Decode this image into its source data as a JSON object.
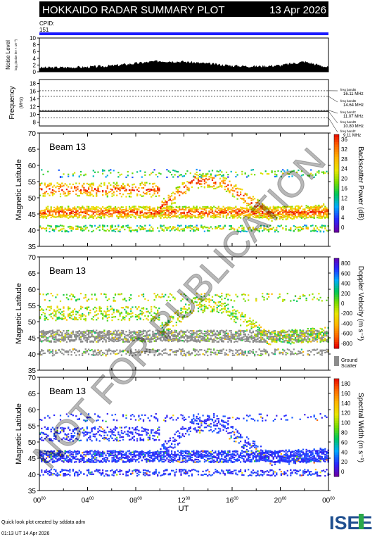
{
  "header": {
    "title": "HOKKAIDO RADAR SUMMARY PLOT",
    "date": "13 Apr 2026",
    "cpid_label": "CPID:",
    "cpid_value": "151",
    "colors": {
      "header_bg": "#000000",
      "cpid_bar": "#1a1aff"
    }
  },
  "noise_panel": {
    "ylabel": "Noise Level",
    "ylabel_sub": "log₁₀(noise lev × 10⁻³)",
    "yticks": [
      "0",
      "2",
      "4",
      "6",
      "8",
      "10"
    ]
  },
  "frequency_panel": {
    "ylabel": "Frequency",
    "unit": "(MHz)",
    "yticks": [
      "8",
      "10",
      "12",
      "14",
      "16",
      "18"
    ],
    "bands": [
      {
        "label": "freq bandB",
        "value": "16.11 MHz"
      },
      {
        "label": "freq bandB",
        "value": "14.64 MHz"
      },
      {
        "label": "freq bandC",
        "value": "11.07 MHz"
      },
      {
        "label": "freq bandD",
        "value": "10.80 MHz"
      },
      {
        "label": "freq bandF",
        "value": "9.11 MHz"
      }
    ]
  },
  "panels": [
    {
      "beam": "Beam 13",
      "ylabel": "Magnetic Latitude",
      "cbar_label": "Backscatter Power (dB)",
      "cbar_ticks": [
        "0",
        "4",
        "8",
        "12",
        "16",
        "20",
        "24",
        "28",
        "32",
        "36"
      ]
    },
    {
      "beam": "Beam 13",
      "ylabel": "Magnetic Latitude",
      "cbar_label": "Doppler Velocity (m s⁻¹)",
      "cbar_ticks": [
        "-800",
        "-600",
        "-400",
        "-200",
        "0",
        "200",
        "400",
        "600",
        "800"
      ],
      "ground_label_1": "Ground",
      "ground_label_2": "Scatter"
    },
    {
      "beam": "Beam 13",
      "ylabel": "Magnetic Latitude",
      "cbar_label": "Spectral Width (m s⁻¹)",
      "cbar_ticks": [
        "0",
        "20",
        "40",
        "60",
        "80",
        "100",
        "120",
        "140",
        "160",
        "180"
      ]
    }
  ],
  "lat_ticks": [
    "35",
    "40",
    "45",
    "50",
    "55",
    "60",
    "65",
    "70"
  ],
  "x_axis": {
    "label": "UT",
    "ticks": [
      "00",
      "04",
      "08",
      "12",
      "16",
      "20",
      "00"
    ],
    "tick_sup": "00"
  },
  "watermark": "NOT FOR PUBLICATION",
  "footer": {
    "line1": "Quick look plot created by sddata adm",
    "line2": "01:13 UT 14 Apr 2026",
    "logo": "ISEE"
  },
  "chart_data": [
    {
      "type": "area",
      "title": "",
      "ylabel": "Noise Level",
      "xlim": [
        0,
        24
      ],
      "ylim": [
        0,
        10
      ],
      "x": [
        0,
        2,
        4,
        6,
        8,
        10,
        12,
        14,
        16,
        18,
        20,
        22,
        24
      ],
      "values": [
        1.2,
        1.3,
        1.4,
        1.8,
        2.5,
        3.2,
        3.0,
        2.4,
        1.8,
        1.6,
        1.9,
        3.0,
        1.3
      ]
    },
    {
      "type": "line",
      "title": "",
      "ylabel": "Frequency",
      "xlim": [
        0,
        24
      ],
      "ylim": [
        7,
        19
      ],
      "series": [
        {
          "values": [
            10.8,
            10.8,
            10.8,
            10.8,
            10.8,
            10.8,
            10.8,
            10.8,
            10.8,
            10.8,
            10.8,
            10.8,
            10.8
          ]
        }
      ],
      "x": [
        0,
        2,
        4,
        6,
        8,
        10,
        12,
        14,
        16,
        18,
        20,
        22,
        24
      ]
    },
    {
      "type": "heatmap",
      "title": "Beam 13",
      "xlabel": "UT",
      "ylabel": "Magnetic Latitude",
      "xlim": [
        0,
        24
      ],
      "ylim": [
        35,
        70
      ],
      "zlabel": "Backscatter Power (dB)",
      "zlim": [
        0,
        36
      ]
    },
    {
      "type": "heatmap",
      "title": "Beam 13",
      "xlabel": "UT",
      "ylabel": "Magnetic Latitude",
      "xlim": [
        0,
        24
      ],
      "ylim": [
        35,
        70
      ],
      "zlabel": "Doppler Velocity (m s⁻¹)",
      "zlim": [
        -800,
        800
      ]
    },
    {
      "type": "heatmap",
      "title": "Beam 13",
      "xlabel": "UT",
      "ylabel": "Magnetic Latitude",
      "xlim": [
        0,
        24
      ],
      "ylim": [
        35,
        70
      ],
      "zlabel": "Spectral Width (m s⁻¹)",
      "zlim": [
        0,
        180
      ]
    }
  ]
}
